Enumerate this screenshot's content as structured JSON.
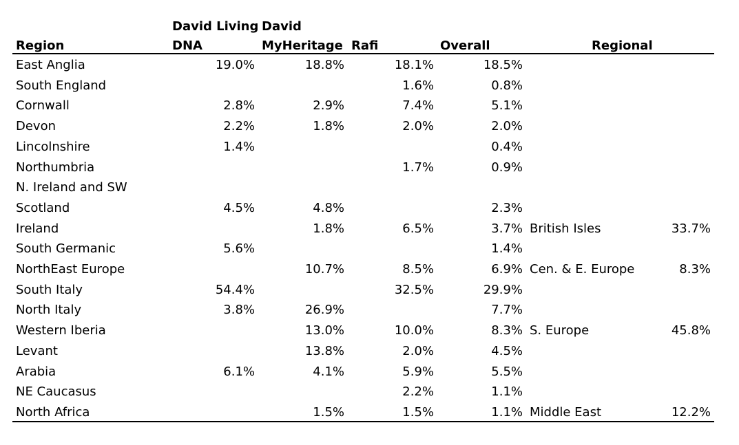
{
  "table": {
    "header": {
      "region": "Region",
      "living_dna_top": "David Living",
      "living_dna_bottom": "DNA",
      "myheritage_top": "David",
      "myheritage_bottom": "MyHeritage",
      "rafi": "Rafi",
      "overall": "Overall",
      "regional": "Regional"
    },
    "rows": [
      {
        "region": "East Anglia",
        "living_dna": "19.0%",
        "myheritage": "18.8%",
        "rafi": "18.1%",
        "overall": "18.5%",
        "regional_name": "",
        "regional_value": ""
      },
      {
        "region": "South England",
        "living_dna": "",
        "myheritage": "",
        "rafi": "1.6%",
        "overall": "0.8%",
        "regional_name": "",
        "regional_value": ""
      },
      {
        "region": "Cornwall",
        "living_dna": "2.8%",
        "myheritage": "2.9%",
        "rafi": "7.4%",
        "overall": "5.1%",
        "regional_name": "",
        "regional_value": ""
      },
      {
        "region": "Devon",
        "living_dna": "2.2%",
        "myheritage": "1.8%",
        "rafi": "2.0%",
        "overall": "2.0%",
        "regional_name": "",
        "regional_value": ""
      },
      {
        "region": "Lincolnshire",
        "living_dna": "1.4%",
        "myheritage": "",
        "rafi": "",
        "overall": "0.4%",
        "regional_name": "",
        "regional_value": ""
      },
      {
        "region": "Northumbria",
        "living_dna": "",
        "myheritage": "",
        "rafi": "1.7%",
        "overall": "0.9%",
        "regional_name": "",
        "regional_value": ""
      },
      {
        "region": "N. Ireland and SW",
        "living_dna": "",
        "myheritage": "",
        "rafi": "",
        "overall": "",
        "regional_name": "",
        "regional_value": ""
      },
      {
        "region": "Scotland",
        "living_dna": "4.5%",
        "myheritage": "4.8%",
        "rafi": "",
        "overall": "2.3%",
        "regional_name": "",
        "regional_value": ""
      },
      {
        "region": "Ireland",
        "living_dna": "",
        "myheritage": "1.8%",
        "rafi": "6.5%",
        "overall": "3.7%",
        "regional_name": "British Isles",
        "regional_value": "33.7%"
      },
      {
        "region": "South Germanic",
        "living_dna": "5.6%",
        "myheritage": "",
        "rafi": "",
        "overall": "1.4%",
        "regional_name": "",
        "regional_value": ""
      },
      {
        "region": "NorthEast Europe",
        "living_dna": "",
        "myheritage": "10.7%",
        "rafi": "8.5%",
        "overall": "6.9%",
        "regional_name": "Cen. & E. Europe",
        "regional_value": "8.3%"
      },
      {
        "region": "South Italy",
        "living_dna": "54.4%",
        "myheritage": "",
        "rafi": "32.5%",
        "overall": "29.9%",
        "regional_name": "",
        "regional_value": ""
      },
      {
        "region": "North Italy",
        "living_dna": "3.8%",
        "myheritage": "26.9%",
        "rafi": "",
        "overall": "7.7%",
        "regional_name": "",
        "regional_value": ""
      },
      {
        "region": "Western Iberia",
        "living_dna": "",
        "myheritage": "13.0%",
        "rafi": "10.0%",
        "overall": "8.3%",
        "regional_name": "S. Europe",
        "regional_value": "45.8%"
      },
      {
        "region": "Levant",
        "living_dna": "",
        "myheritage": "13.8%",
        "rafi": "2.0%",
        "overall": "4.5%",
        "regional_name": "",
        "regional_value": ""
      },
      {
        "region": "Arabia",
        "living_dna": "6.1%",
        "myheritage": "4.1%",
        "rafi": "5.9%",
        "overall": "5.5%",
        "regional_name": "",
        "regional_value": ""
      },
      {
        "region": "NE Caucasus",
        "living_dna": "",
        "myheritage": "",
        "rafi": "2.2%",
        "overall": "1.1%",
        "regional_name": "",
        "regional_value": ""
      },
      {
        "region": "North Africa",
        "living_dna": "",
        "myheritage": "1.5%",
        "rafi": "1.5%",
        "overall": "1.1%",
        "regional_name": "Middle East",
        "regional_value": "12.2%"
      }
    ]
  }
}
